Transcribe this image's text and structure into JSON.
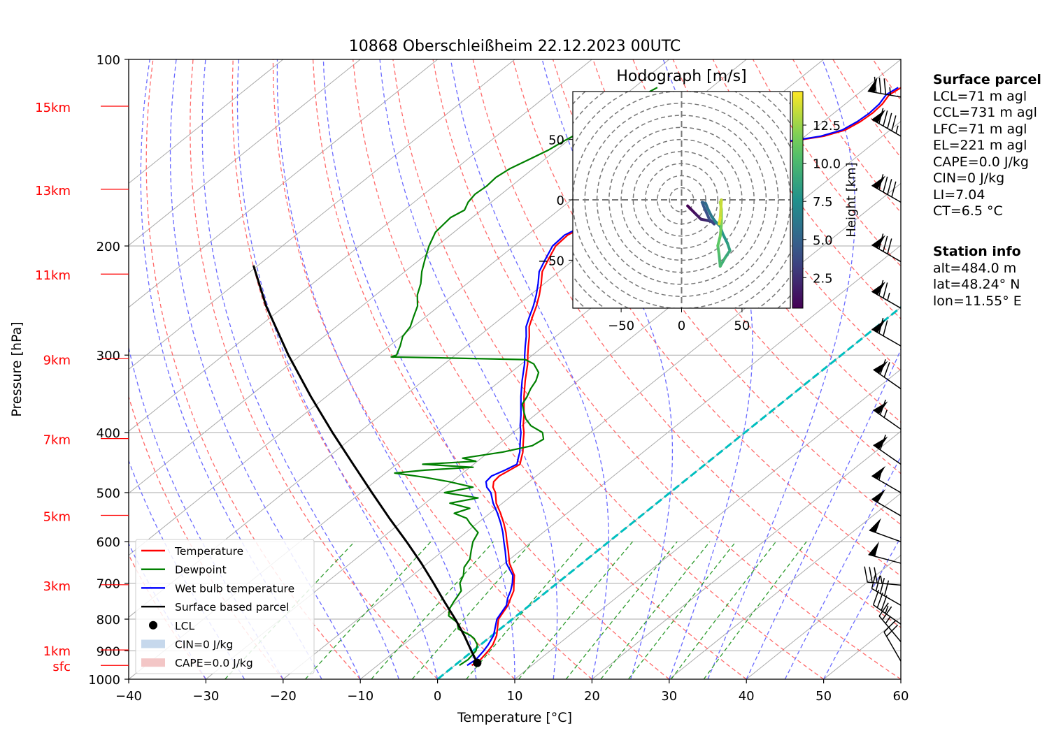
{
  "chart_data": {
    "type": "skew-t",
    "title": "10868 Oberschleißheim 22.12.2023 00UTC",
    "xlabel": "Temperature [°C]",
    "ylabel": "Pressure [hPa]",
    "xlim": [
      -40,
      60
    ],
    "ylim": [
      1000,
      100
    ],
    "x_ticks": [
      "−40",
      "−30",
      "−20",
      "−10",
      "0",
      "10",
      "20",
      "30",
      "40",
      "50",
      "60"
    ],
    "y_ticks": [
      "100",
      "200",
      "300",
      "400",
      "500",
      "600",
      "700",
      "800",
      "900",
      "1000"
    ],
    "height_labels": [
      {
        "label": "15km",
        "p": 119
      },
      {
        "label": "13km",
        "p": 162
      },
      {
        "label": "11km",
        "p": 222
      },
      {
        "label": "9km",
        "p": 304
      },
      {
        "label": "7km",
        "p": 409
      },
      {
        "label": "5km",
        "p": 544
      },
      {
        "label": "3km",
        "p": 704
      },
      {
        "label": "1km",
        "p": 897
      },
      {
        "label": "sfc",
        "p": 950
      }
    ],
    "legend": [
      "Temperature",
      "Dewpoint",
      "Wet bulb temperature",
      "Surface based parcel",
      "LCL",
      "CIN=0 J/kg",
      "CAPE=0.0 J/kg"
    ],
    "legend_position": "lower-left",
    "series": [
      {
        "name": "Temperature",
        "color": "#ff0000",
        "points": [
          [
            950,
            2.2
          ],
          [
            930,
            2.4
          ],
          [
            900,
            2.0
          ],
          [
            880,
            1.6
          ],
          [
            850,
            0.6
          ],
          [
            800,
            -1.8
          ],
          [
            760,
            -2.8
          ],
          [
            740,
            -3.6
          ],
          [
            720,
            -4.4
          ],
          [
            700,
            -5.6
          ],
          [
            680,
            -6.8
          ],
          [
            650,
            -9.4
          ],
          [
            620,
            -11.6
          ],
          [
            600,
            -13.2
          ],
          [
            580,
            -14.8
          ],
          [
            560,
            -16.6
          ],
          [
            540,
            -18.6
          ],
          [
            520,
            -20.8
          ],
          [
            500,
            -22.6
          ],
          [
            490,
            -23.8
          ],
          [
            480,
            -24.6
          ],
          [
            470,
            -24.8
          ],
          [
            460,
            -24.4
          ],
          [
            450,
            -24.0
          ],
          [
            440,
            -24.8
          ],
          [
            430,
            -25.6
          ],
          [
            420,
            -26.6
          ],
          [
            410,
            -27.6
          ],
          [
            400,
            -28.6
          ],
          [
            390,
            -29.8
          ],
          [
            375,
            -31.4
          ],
          [
            350,
            -34.4
          ],
          [
            330,
            -36.8
          ],
          [
            310,
            -39.2
          ],
          [
            300,
            -40.6
          ],
          [
            290,
            -42.0
          ],
          [
            280,
            -43.4
          ],
          [
            270,
            -45.0
          ],
          [
            260,
            -46.2
          ],
          [
            250,
            -47.4
          ],
          [
            240,
            -48.8
          ],
          [
            230,
            -50.4
          ],
          [
            220,
            -52.2
          ],
          [
            210,
            -53.4
          ],
          [
            200,
            -54.6
          ],
          [
            192,
            -54.8
          ],
          [
            185,
            -53.8
          ],
          [
            178,
            -52.0
          ],
          [
            172,
            -50.6
          ],
          [
            166,
            -50.0
          ],
          [
            160,
            -49.4
          ],
          [
            155,
            -49.6
          ],
          [
            150,
            -49.0
          ],
          [
            145,
            -48.2
          ],
          [
            140,
            -46.4
          ],
          [
            137,
            -43.4
          ],
          [
            135,
            -40.2
          ],
          [
            133,
            -37.6
          ],
          [
            130,
            -35.8
          ],
          [
            126,
            -35.2
          ],
          [
            122,
            -35.0
          ],
          [
            118,
            -35.2
          ],
          [
            114,
            -35.8
          ],
          [
            111,
            -35.4
          ]
        ]
      },
      {
        "name": "Wet bulb temperature",
        "color": "#0000ff",
        "points": [
          [
            950,
            1.6
          ],
          [
            930,
            1.8
          ],
          [
            900,
            1.4
          ],
          [
            880,
            1.0
          ],
          [
            850,
            0.2
          ],
          [
            800,
            -2.0
          ],
          [
            760,
            -3.0
          ],
          [
            740,
            -4.0
          ],
          [
            720,
            -4.8
          ],
          [
            700,
            -5.8
          ],
          [
            680,
            -7.0
          ],
          [
            650,
            -9.8
          ],
          [
            620,
            -12.0
          ],
          [
            600,
            -13.6
          ],
          [
            580,
            -15.2
          ],
          [
            560,
            -17.0
          ],
          [
            540,
            -19.0
          ],
          [
            520,
            -21.2
          ],
          [
            500,
            -23.2
          ],
          [
            490,
            -24.6
          ],
          [
            480,
            -25.6
          ],
          [
            470,
            -25.8
          ],
          [
            460,
            -25.0
          ],
          [
            450,
            -24.4
          ],
          [
            440,
            -25.2
          ],
          [
            430,
            -26.0
          ],
          [
            420,
            -27.0
          ],
          [
            410,
            -28.0
          ],
          [
            400,
            -29.0
          ],
          [
            390,
            -30.2
          ],
          [
            375,
            -31.8
          ],
          [
            350,
            -34.8
          ],
          [
            330,
            -37.2
          ],
          [
            310,
            -39.6
          ],
          [
            300,
            -41.0
          ],
          [
            290,
            -42.4
          ],
          [
            280,
            -43.8
          ],
          [
            270,
            -45.4
          ],
          [
            260,
            -46.6
          ],
          [
            250,
            -47.8
          ],
          [
            240,
            -49.2
          ],
          [
            230,
            -50.8
          ],
          [
            220,
            -52.6
          ],
          [
            210,
            -53.8
          ],
          [
            200,
            -55.0
          ],
          [
            192,
            -55.2
          ],
          [
            185,
            -54.2
          ],
          [
            178,
            -52.4
          ],
          [
            172,
            -51.0
          ],
          [
            166,
            -50.4
          ],
          [
            160,
            -49.8
          ],
          [
            155,
            -50.0
          ],
          [
            150,
            -49.4
          ],
          [
            145,
            -48.6
          ],
          [
            140,
            -46.8
          ],
          [
            137,
            -43.8
          ],
          [
            135,
            -40.6
          ],
          [
            133,
            -38.0
          ],
          [
            130,
            -36.2
          ],
          [
            126,
            -35.6
          ],
          [
            122,
            -35.4
          ],
          [
            118,
            -35.6
          ],
          [
            114,
            -36.2
          ],
          [
            111,
            -35.8
          ]
        ]
      },
      {
        "name": "Dewpoint",
        "color": "#008000",
        "points": [
          [
            950,
            0.6
          ],
          [
            930,
            0.8
          ],
          [
            900,
            0.4
          ],
          [
            880,
            -0.4
          ],
          [
            860,
            -1.8
          ],
          [
            850,
            -2.8
          ],
          [
            830,
            -5.4
          ],
          [
            810,
            -6.6
          ],
          [
            790,
            -8.8
          ],
          [
            770,
            -9.8
          ],
          [
            750,
            -10.4
          ],
          [
            720,
            -11.2
          ],
          [
            700,
            -12.6
          ],
          [
            680,
            -13.4
          ],
          [
            660,
            -14.6
          ],
          [
            640,
            -15.2
          ],
          [
            620,
            -16.4
          ],
          [
            600,
            -17.6
          ],
          [
            580,
            -18.4
          ],
          [
            560,
            -21.0
          ],
          [
            550,
            -22.2
          ],
          [
            540,
            -24.6
          ],
          [
            530,
            -23.4
          ],
          [
            520,
            -26.8
          ],
          [
            510,
            -24.0
          ],
          [
            500,
            -29.2
          ],
          [
            490,
            -26.4
          ],
          [
            480,
            -30.4
          ],
          [
            472,
            -34.4
          ],
          [
            465,
            -38.8
          ],
          [
            460,
            -35.4
          ],
          [
            455,
            -29.6
          ],
          [
            450,
            -36.6
          ],
          [
            445,
            -30.2
          ],
          [
            440,
            -32.4
          ],
          [
            430,
            -28.2
          ],
          [
            420,
            -25.4
          ],
          [
            410,
            -25.0
          ],
          [
            400,
            -26.2
          ],
          [
            390,
            -28.8
          ],
          [
            380,
            -30.6
          ],
          [
            370,
            -32.0
          ],
          [
            360,
            -33.4
          ],
          [
            350,
            -34.0
          ],
          [
            340,
            -34.8
          ],
          [
            330,
            -35.4
          ],
          [
            320,
            -36.4
          ],
          [
            310,
            -38.4
          ],
          [
            305,
            -40.2
          ],
          [
            303,
            -52.0
          ],
          [
            302,
            -58.0
          ],
          [
            300,
            -57.6
          ],
          [
            290,
            -58.6
          ],
          [
            280,
            -59.8
          ],
          [
            270,
            -60.4
          ],
          [
            260,
            -61.6
          ],
          [
            250,
            -62.8
          ],
          [
            240,
            -64.6
          ],
          [
            230,
            -66.0
          ],
          [
            220,
            -67.8
          ],
          [
            210,
            -69.4
          ],
          [
            200,
            -71.0
          ],
          [
            190,
            -72.4
          ],
          [
            180,
            -72.8
          ],
          [
            175,
            -72.2
          ],
          [
            170,
            -73.0
          ],
          [
            165,
            -73.4
          ],
          [
            160,
            -73.2
          ],
          [
            155,
            -73.4
          ],
          [
            150,
            -73.0
          ],
          [
            145,
            -72.0
          ],
          [
            140,
            -71.0
          ],
          [
            135,
            -70.4
          ],
          [
            130,
            -69.6
          ],
          [
            125,
            -69.6
          ],
          [
            120,
            -69.0
          ],
          [
            116,
            -68.0
          ],
          [
            113,
            -67.4
          ],
          [
            111,
            -67.0
          ]
        ]
      },
      {
        "name": "Surface based parcel",
        "color": "#000000",
        "points": [
          [
            941,
            2.5
          ],
          [
            900,
            -0.2
          ],
          [
            850,
            -3.6
          ],
          [
            800,
            -7.4
          ],
          [
            750,
            -11.6
          ],
          [
            700,
            -16.0
          ],
          [
            650,
            -20.8
          ],
          [
            600,
            -26.2
          ],
          [
            550,
            -32.2
          ],
          [
            500,
            -38.6
          ],
          [
            450,
            -45.6
          ],
          [
            400,
            -53.4
          ],
          [
            350,
            -62.0
          ],
          [
            300,
            -71.6
          ],
          [
            250,
            -82.4
          ],
          [
            215,
            -90.6
          ]
        ]
      }
    ],
    "lcl": {
      "p": 941,
      "t": 2.5,
      "label": "LCL"
    },
    "cin_label": "CIN=0 J/kg",
    "cape_label": "CAPE=0.0 J/kg",
    "zero_isotherm_color": "#00bfbf",
    "wind_barbs": [
      {
        "p": 115,
        "speed_kt": 85,
        "dir": 280
      },
      {
        "p": 133,
        "speed_kt": 95,
        "dir": 300
      },
      {
        "p": 170,
        "speed_kt": 90,
        "dir": 300
      },
      {
        "p": 212,
        "speed_kt": 80,
        "dir": 300
      },
      {
        "p": 252,
        "speed_kt": 75,
        "dir": 300
      },
      {
        "p": 290,
        "speed_kt": 70,
        "dir": 300
      },
      {
        "p": 340,
        "speed_kt": 70,
        "dir": 305
      },
      {
        "p": 395,
        "speed_kt": 65,
        "dir": 305
      },
      {
        "p": 450,
        "speed_kt": 60,
        "dir": 305
      },
      {
        "p": 500,
        "speed_kt": 55,
        "dir": 300
      },
      {
        "p": 545,
        "speed_kt": 50,
        "dir": 300
      },
      {
        "p": 600,
        "speed_kt": 50,
        "dir": 290
      },
      {
        "p": 650,
        "speed_kt": 50,
        "dir": 285
      },
      {
        "p": 705,
        "speed_kt": 35,
        "dir": 275
      },
      {
        "p": 760,
        "speed_kt": 40,
        "dir": 300
      },
      {
        "p": 815,
        "speed_kt": 35,
        "dir": 305
      },
      {
        "p": 870,
        "speed_kt": 25,
        "dir": 320
      },
      {
        "p": 935,
        "speed_kt": 20,
        "dir": 330
      }
    ],
    "hodograph": {
      "title": "Hodograph [m/s]",
      "xlim": [
        -90,
        90
      ],
      "ylim": [
        -90,
        90
      ],
      "x_ticks": [
        "−50",
        "0",
        "50"
      ],
      "y_ticks": [
        "50",
        "0",
        "−50"
      ],
      "rings_step": 10,
      "colorbar_label": "Height [km]",
      "colorbar_ticks": [
        "2.5",
        "5.0",
        "7.5",
        "10.0",
        "12.5"
      ],
      "colorbar_range": [
        0.5,
        14.7
      ],
      "points": [
        [
          5,
          -5,
          0.5
        ],
        [
          8,
          -8,
          1.0
        ],
        [
          12,
          -12,
          1.5
        ],
        [
          16,
          -16,
          2.0
        ],
        [
          21,
          -17,
          2.5
        ],
        [
          25,
          -18,
          3.0
        ],
        [
          27,
          -20,
          3.5
        ],
        [
          23,
          -16,
          4.0
        ],
        [
          19,
          -7,
          4.5
        ],
        [
          17,
          -2,
          5.0
        ],
        [
          20,
          -3,
          5.5
        ],
        [
          22,
          -8,
          6.0
        ],
        [
          25,
          -14,
          6.5
        ],
        [
          28,
          -18,
          7.0
        ],
        [
          32,
          -22,
          7.5
        ],
        [
          34,
          -28,
          8.0
        ],
        [
          38,
          -36,
          8.5
        ],
        [
          40,
          -42,
          9.0
        ],
        [
          36,
          -48,
          9.5
        ],
        [
          32,
          -55,
          10.0
        ],
        [
          31,
          -45,
          10.5
        ],
        [
          30,
          -38,
          11.0
        ],
        [
          32,
          -30,
          11.5
        ],
        [
          33,
          -20,
          12.0
        ],
        [
          33,
          -8,
          12.5
        ],
        [
          32,
          -2,
          13.0
        ],
        [
          33,
          0,
          13.5
        ],
        [
          32,
          -15,
          14.0
        ],
        [
          31,
          -20,
          14.5
        ]
      ]
    }
  },
  "surface_parcel": {
    "heading": "Surface parcel",
    "lines": [
      "LCL=71 m agl",
      "CCL=731 m agl",
      "LFC=71 m agl",
      "EL=221 m agl",
      "CAPE=0.0 J/kg",
      "CIN=0 J/kg",
      "LI=7.04",
      "CT=6.5 °C"
    ]
  },
  "station_info": {
    "heading": "Station info",
    "lines": [
      "alt=484.0 m",
      "lat=48.24° N",
      "lon=11.55° E"
    ]
  }
}
